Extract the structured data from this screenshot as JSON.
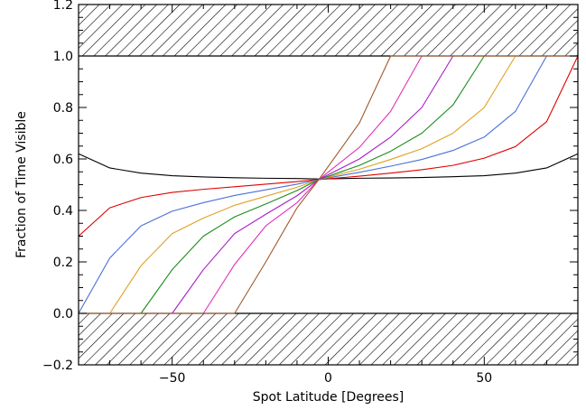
{
  "chart_data": {
    "type": "line",
    "title": "",
    "xlabel": "Spot Latitude [Degrees]",
    "ylabel": "Fraction of Time Visible",
    "xlim": [
      -80,
      80
    ],
    "ylim": [
      -0.2,
      1.2
    ],
    "x_ticks": [
      -50,
      0,
      50
    ],
    "x_tick_labels": [
      "−50",
      "0",
      "50"
    ],
    "y_ticks": [
      -0.2,
      0.0,
      0.2,
      0.4,
      0.6,
      0.8,
      1.0,
      1.2
    ],
    "y_tick_labels": [
      "−0.2",
      "0.0",
      "0.2",
      "0.4",
      "0.6",
      "0.8",
      "1.0",
      "1.2"
    ],
    "grid": false,
    "hatched_regions": [
      {
        "y_from": 1.0,
        "y_to": 1.2
      },
      {
        "y_from": -0.2,
        "y_to": 0.0
      }
    ],
    "series": [
      {
        "color": "#000000",
        "points": [
          [
            -80,
            0.62
          ],
          [
            -70,
            0.565
          ],
          [
            -60,
            0.545
          ],
          [
            -50,
            0.535
          ],
          [
            -40,
            0.53
          ],
          [
            -30,
            0.527
          ],
          [
            -20,
            0.525
          ],
          [
            -10,
            0.524
          ],
          [
            -3,
            0.522
          ],
          [
            10,
            0.525
          ],
          [
            20,
            0.526
          ],
          [
            30,
            0.528
          ],
          [
            40,
            0.531
          ],
          [
            50,
            0.535
          ],
          [
            60,
            0.545
          ],
          [
            70,
            0.565
          ],
          [
            80,
            0.62
          ]
        ]
      },
      {
        "color": "#e00000",
        "points": [
          [
            -80,
            0.3
          ],
          [
            -70,
            0.41
          ],
          [
            -60,
            0.45
          ],
          [
            -50,
            0.47
          ],
          [
            -40,
            0.482
          ],
          [
            -30,
            0.492
          ],
          [
            -20,
            0.502
          ],
          [
            -10,
            0.512
          ],
          [
            -3,
            0.52
          ],
          [
            10,
            0.533
          ],
          [
            20,
            0.545
          ],
          [
            30,
            0.558
          ],
          [
            40,
            0.575
          ],
          [
            50,
            0.603
          ],
          [
            60,
            0.648
          ],
          [
            70,
            0.745
          ],
          [
            80,
            1.0
          ]
        ]
      },
      {
        "color": "#4a6fd8",
        "points": [
          [
            -80,
            0.0
          ],
          [
            -70,
            0.215
          ],
          [
            -60,
            0.34
          ],
          [
            -50,
            0.397
          ],
          [
            -40,
            0.43
          ],
          [
            -30,
            0.458
          ],
          [
            -20,
            0.48
          ],
          [
            -10,
            0.502
          ],
          [
            -3,
            0.52
          ],
          [
            10,
            0.548
          ],
          [
            20,
            0.572
          ],
          [
            30,
            0.598
          ],
          [
            40,
            0.633
          ],
          [
            50,
            0.685
          ],
          [
            60,
            0.785
          ],
          [
            70,
            1.0
          ],
          [
            80,
            1.0
          ]
        ]
      },
      {
        "color": "#e0a020",
        "points": [
          [
            -80,
            0.0
          ],
          [
            -70,
            0.0
          ],
          [
            -60,
            0.185
          ],
          [
            -50,
            0.31
          ],
          [
            -40,
            0.37
          ],
          [
            -30,
            0.42
          ],
          [
            -20,
            0.455
          ],
          [
            -10,
            0.49
          ],
          [
            -3,
            0.52
          ],
          [
            10,
            0.56
          ],
          [
            20,
            0.598
          ],
          [
            30,
            0.64
          ],
          [
            40,
            0.7
          ],
          [
            50,
            0.8
          ],
          [
            60,
            1.0
          ],
          [
            70,
            1.0
          ],
          [
            80,
            1.0
          ]
        ]
      },
      {
        "color": "#1a8c1a",
        "points": [
          [
            -80,
            0.0
          ],
          [
            -70,
            0.0
          ],
          [
            -60,
            0.0
          ],
          [
            -50,
            0.17
          ],
          [
            -40,
            0.3
          ],
          [
            -30,
            0.375
          ],
          [
            -20,
            0.425
          ],
          [
            -10,
            0.477
          ],
          [
            -3,
            0.52
          ],
          [
            10,
            0.575
          ],
          [
            20,
            0.63
          ],
          [
            30,
            0.7
          ],
          [
            40,
            0.81
          ],
          [
            50,
            1.0
          ],
          [
            60,
            1.0
          ],
          [
            70,
            1.0
          ],
          [
            80,
            1.0
          ]
        ]
      },
      {
        "color": "#a81ec8",
        "points": [
          [
            -80,
            0.0
          ],
          [
            -70,
            0.0
          ],
          [
            -60,
            0.0
          ],
          [
            -50,
            0.0
          ],
          [
            -40,
            0.17
          ],
          [
            -30,
            0.31
          ],
          [
            -20,
            0.385
          ],
          [
            -10,
            0.457
          ],
          [
            -3,
            0.52
          ],
          [
            10,
            0.6
          ],
          [
            20,
            0.685
          ],
          [
            30,
            0.8
          ],
          [
            40,
            1.0
          ],
          [
            50,
            1.0
          ],
          [
            60,
            1.0
          ],
          [
            70,
            1.0
          ],
          [
            80,
            1.0
          ]
        ]
      },
      {
        "color": "#e030b8",
        "points": [
          [
            -80,
            0.0
          ],
          [
            -70,
            0.0
          ],
          [
            -60,
            0.0
          ],
          [
            -50,
            0.0
          ],
          [
            -40,
            0.0
          ],
          [
            -30,
            0.19
          ],
          [
            -20,
            0.34
          ],
          [
            -10,
            0.43
          ],
          [
            -3,
            0.52
          ],
          [
            10,
            0.645
          ],
          [
            20,
            0.785
          ],
          [
            30,
            1.0
          ],
          [
            40,
            1.0
          ],
          [
            50,
            1.0
          ],
          [
            60,
            1.0
          ],
          [
            70,
            1.0
          ],
          [
            80,
            1.0
          ]
        ]
      },
      {
        "color": "#a0582a",
        "points": [
          [
            -80,
            0.0
          ],
          [
            -70,
            0.0
          ],
          [
            -60,
            0.0
          ],
          [
            -50,
            0.0
          ],
          [
            -40,
            0.0
          ],
          [
            -30,
            0.0
          ],
          [
            -20,
            0.2
          ],
          [
            -10,
            0.41
          ],
          [
            -3,
            0.52
          ],
          [
            10,
            0.74
          ],
          [
            20,
            1.0
          ],
          [
            30,
            1.0
          ],
          [
            40,
            1.0
          ],
          [
            50,
            1.0
          ],
          [
            60,
            1.0
          ],
          [
            70,
            1.0
          ],
          [
            80,
            1.0
          ]
        ]
      }
    ]
  }
}
